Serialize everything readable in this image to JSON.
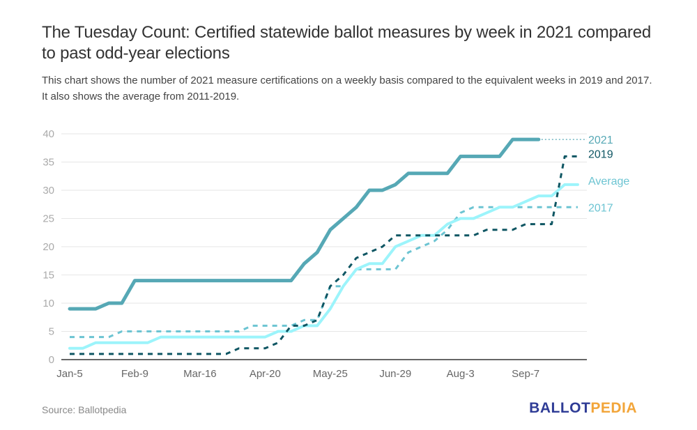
{
  "header": {
    "title": "The Tuesday Count: Certified statewide ballot measures by week in 2021 compared to past odd-year elections",
    "subtitle": "This chart shows the number of 2021 measure certifications on a weekly basis compared to the equivalent weeks in 2019 and 2017. It also shows the average from 2011-2019."
  },
  "footer": {
    "source": "Source: Ballotpedia",
    "logo_part1": "BALLOT",
    "logo_part2": "PEDIA"
  },
  "chart_data": {
    "type": "line",
    "title": "The Tuesday Count: Certified statewide ballot measures by week in 2021 compared to past odd-year elections",
    "xlabel": "",
    "ylabel": "",
    "x_unit": "week index (0 = Jan-5)",
    "x_tick_labels": [
      {
        "week": 0,
        "label": "Jan-5"
      },
      {
        "week": 5,
        "label": "Feb-9"
      },
      {
        "week": 10,
        "label": "Mar-16"
      },
      {
        "week": 15,
        "label": "Apr-20"
      },
      {
        "week": 20,
        "label": "May-25"
      },
      {
        "week": 25,
        "label": "Jun-29"
      },
      {
        "week": 30,
        "label": "Aug-3"
      },
      {
        "week": 35,
        "label": "Sep-7"
      }
    ],
    "xlim": [
      0,
      39
    ],
    "ylim": [
      0,
      40
    ],
    "y_ticks": [
      0,
      5,
      10,
      15,
      20,
      25,
      30,
      35,
      40
    ],
    "grid": true,
    "legend": "right (inline labels)",
    "series": [
      {
        "name": "2021",
        "color": "#56a8b5",
        "style": "solid-thick",
        "extend_dotted_to_end": true,
        "values": [
          9,
          9,
          9,
          10,
          10,
          14,
          14,
          14,
          14,
          14,
          14,
          14,
          14,
          14,
          14,
          14,
          14,
          14,
          17,
          19,
          23,
          25,
          27,
          30,
          30,
          31,
          33,
          33,
          33,
          33,
          36,
          36,
          36,
          36,
          39,
          39,
          39
        ]
      },
      {
        "name": "2019",
        "color": "#0f5663",
        "style": "dashed",
        "values": [
          1,
          1,
          1,
          1,
          1,
          1,
          1,
          1,
          1,
          1,
          1,
          1,
          1,
          2,
          2,
          2,
          3,
          6,
          6,
          7,
          13,
          15,
          18,
          19,
          20,
          22,
          22,
          22,
          22,
          22,
          22,
          22,
          23,
          23,
          23,
          24,
          24,
          24,
          36,
          36
        ]
      },
      {
        "name": "Average",
        "color": "#9cf4fb",
        "style": "solid",
        "values": [
          2,
          2,
          3,
          3,
          3,
          3,
          3,
          4,
          4,
          4,
          4,
          4,
          4,
          4,
          4,
          4,
          5,
          5,
          6,
          6,
          9,
          13,
          16,
          17,
          17,
          20,
          21,
          22,
          22,
          24,
          25,
          25,
          26,
          27,
          27,
          28,
          29,
          29,
          31,
          31
        ]
      },
      {
        "name": "2017",
        "color": "#6cc4d2",
        "style": "dashed",
        "values": [
          4,
          4,
          4,
          4,
          5,
          5,
          5,
          5,
          5,
          5,
          5,
          5,
          5,
          5,
          6,
          6,
          6,
          6,
          7,
          7,
          13,
          13,
          16,
          16,
          16,
          16,
          19,
          20,
          21,
          23,
          26,
          27,
          27,
          27,
          27,
          27,
          27,
          27,
          27,
          27
        ]
      }
    ]
  }
}
